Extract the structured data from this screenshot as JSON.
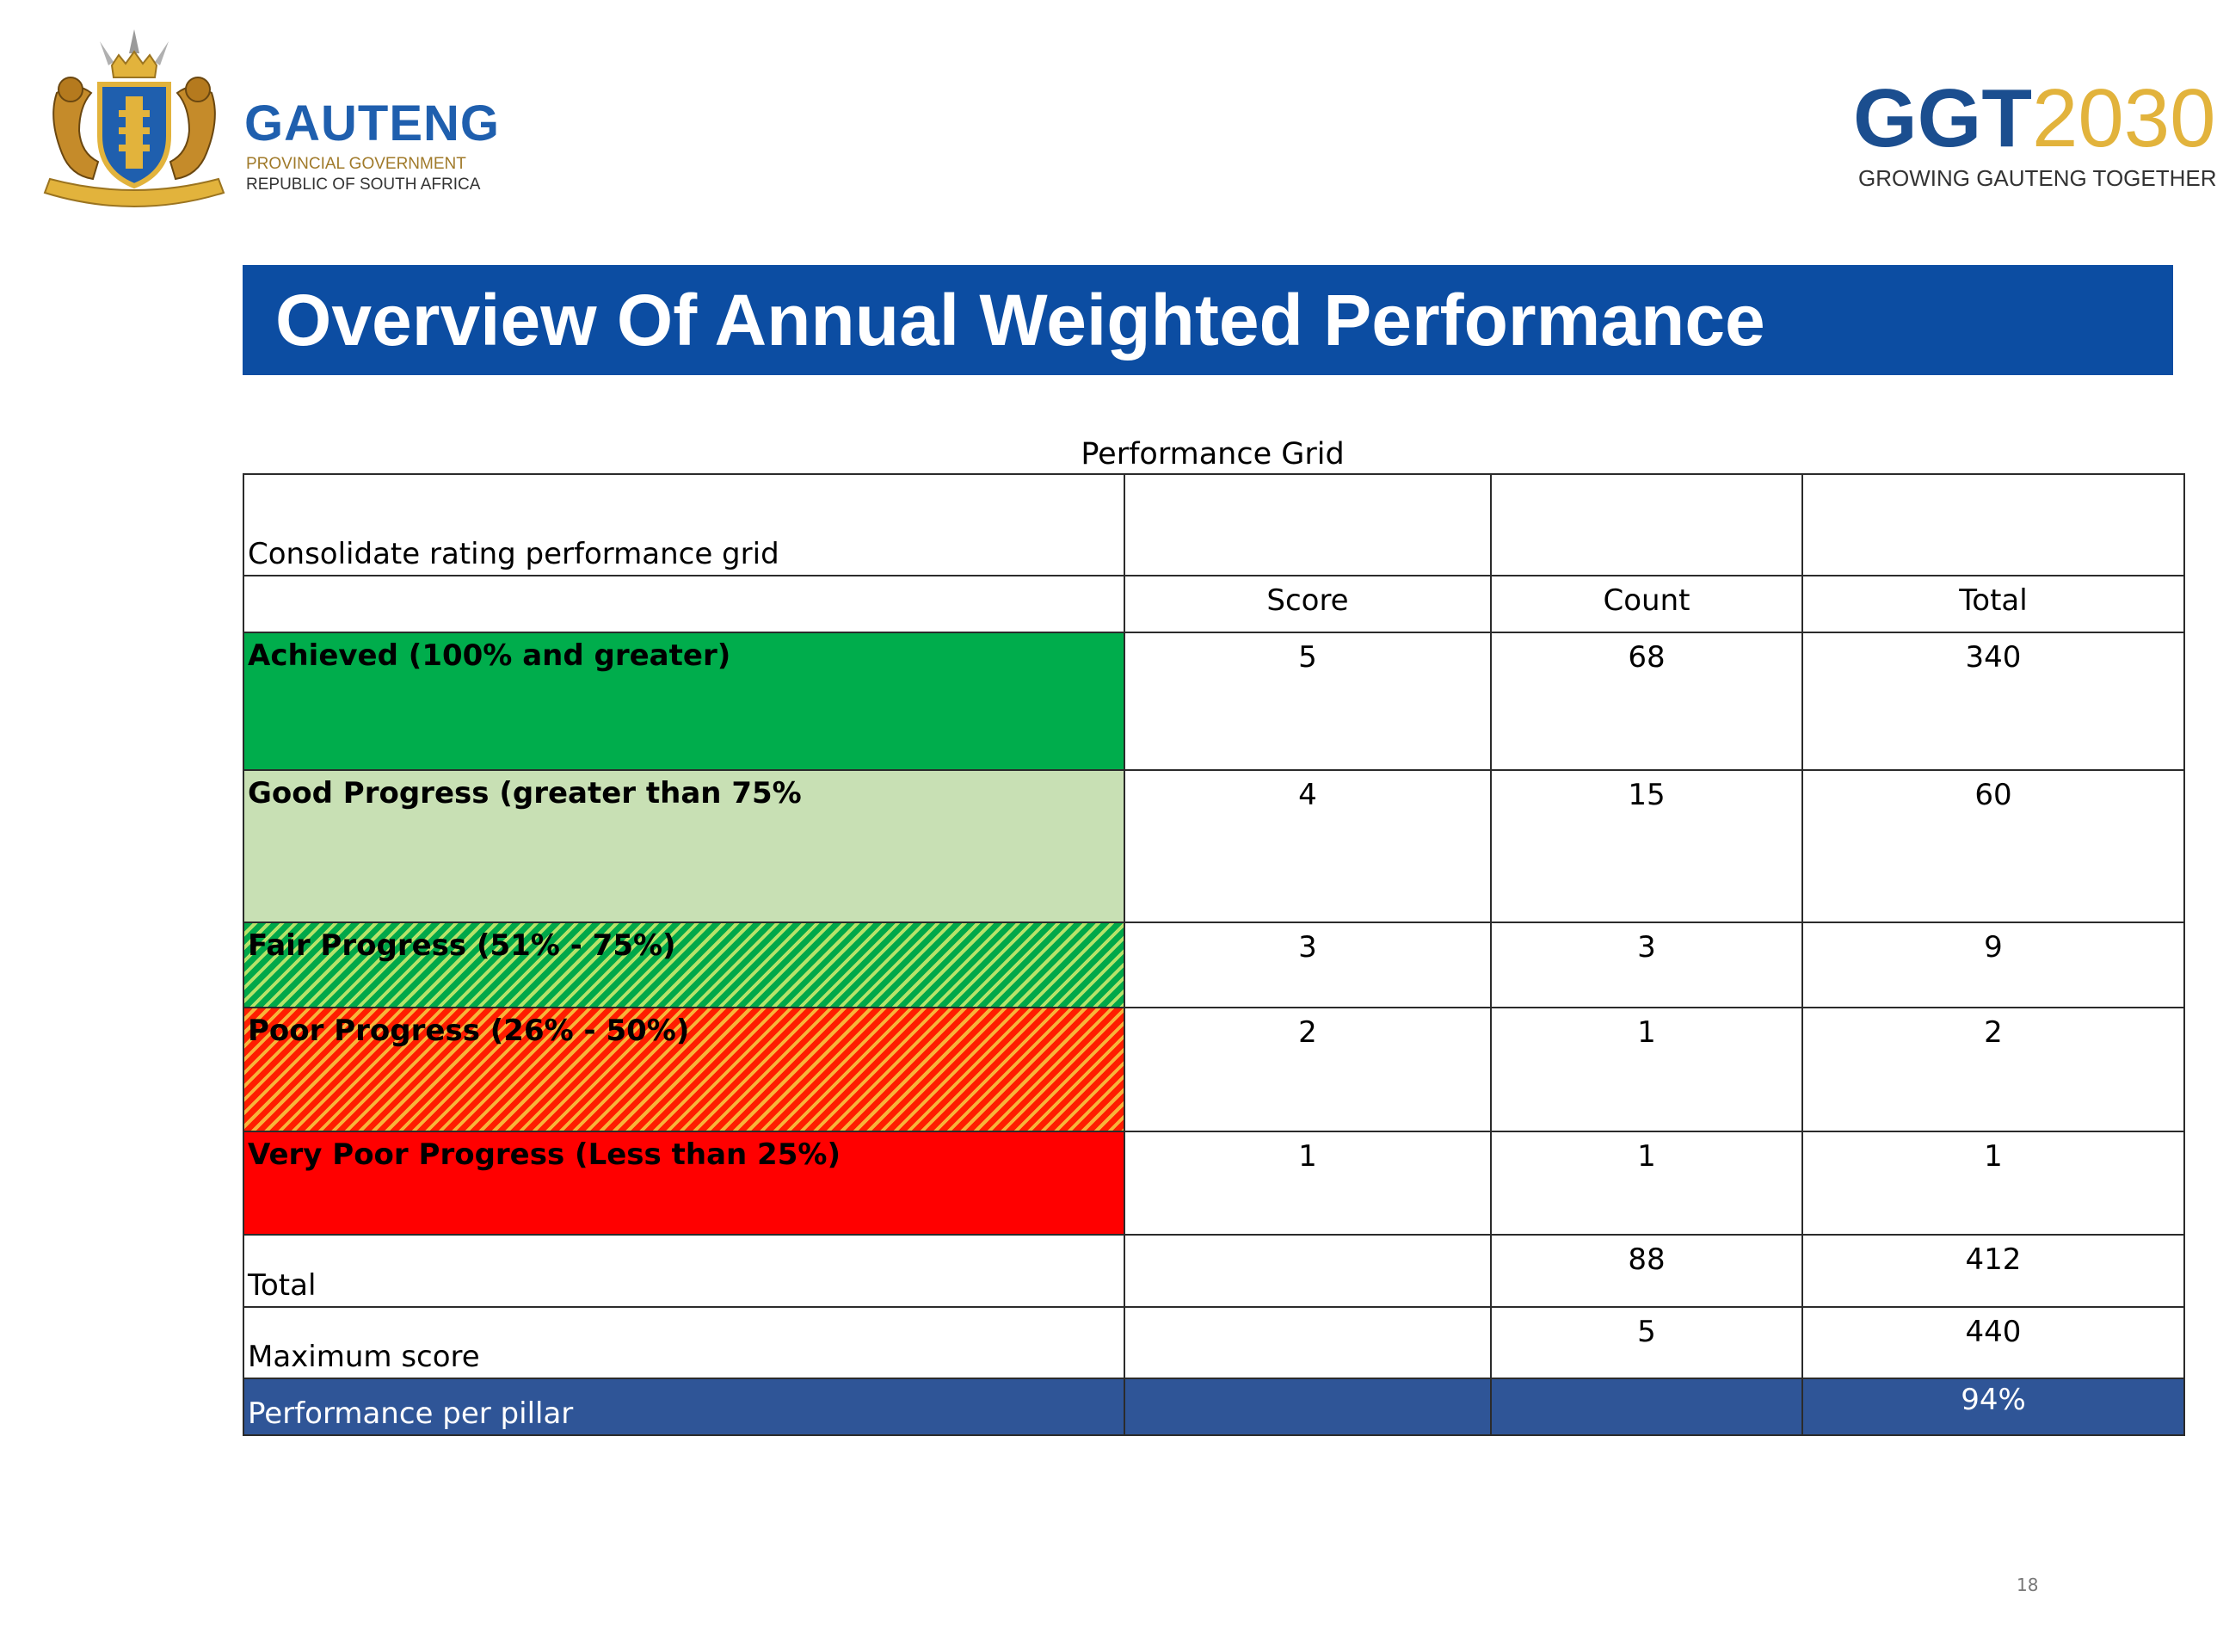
{
  "header": {
    "left_logo": {
      "icon": "gauteng-coat-of-arms-icon",
      "name": "GAUTENG",
      "line1": "PROVINCIAL GOVERNMENT",
      "line2": "REPUBLIC OF SOUTH AFRICA"
    },
    "right_logo": {
      "main_a": "GGT",
      "main_b": "2030",
      "tagline": "GROWING GAUTENG TOGETHER"
    }
  },
  "title": "Overview Of Annual Weighted Performance",
  "grid": {
    "caption": "Performance Grid",
    "header_label": "Consolidate rating performance grid",
    "columns": [
      "Score",
      "Count",
      "Total"
    ],
    "rows": [
      {
        "label": "Achieved (100%  and greater)",
        "score": "5",
        "count": "68",
        "total": "340",
        "color": "#00ad4c"
      },
      {
        "label": "Good Progress (greater than 75%",
        "score": "4",
        "count": "15",
        "total": "60",
        "color": "#c8e0b4"
      },
      {
        "label": "Fair Progress (51% - 75%)",
        "score": "3",
        "count": "3",
        "total": "9",
        "color": "#00a84a"
      },
      {
        "label": "Poor Progress (26% - 50%)",
        "score": "2",
        "count": "1",
        "total": "2",
        "color": "#ff1d00"
      },
      {
        "label": "Very Poor Progress (Less than 25%)",
        "score": "1",
        "count": "1",
        "total": "1",
        "color": "#ff0000"
      }
    ],
    "total_row": {
      "label": "Total",
      "count": "88",
      "total": "412"
    },
    "max_row": {
      "label": "Maximum score",
      "count": "5",
      "total": "440"
    },
    "perf_row": {
      "label": "Performance per pillar",
      "total": "94%",
      "color": "#2f5597"
    }
  },
  "page_number": "18",
  "colors": {
    "title_bar": "#0c4da2",
    "brand_blue": "#1b4e8f",
    "brand_gold": "#e2b33c"
  }
}
